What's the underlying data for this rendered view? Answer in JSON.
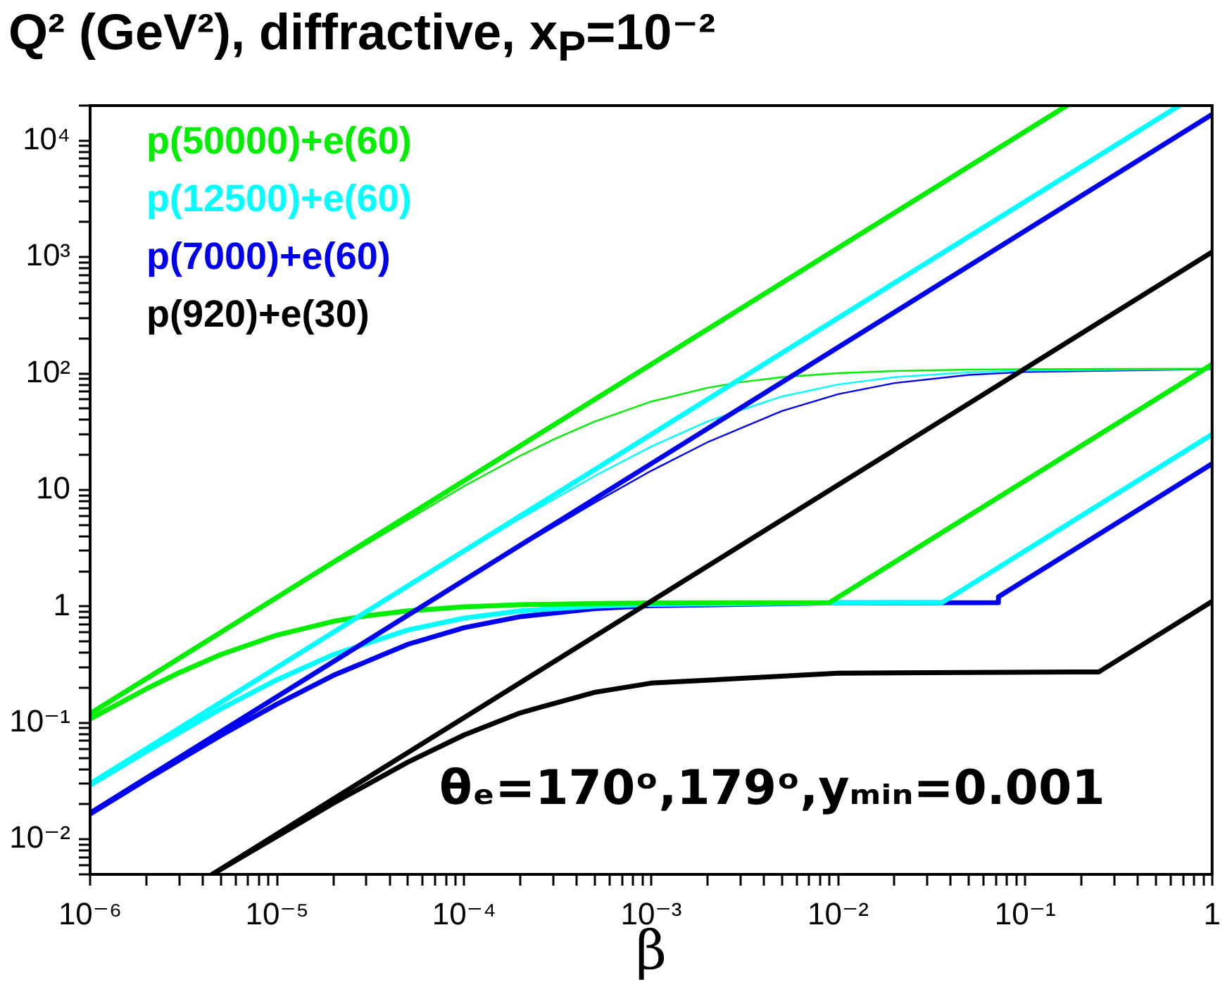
{
  "chart_data": {
    "type": "line",
    "title": "Q² (GeV²), diffractive, x$_{P}$=10⁻²",
    "xlabel": "β",
    "annotations": [
      "θₑ=170ᵒ,179ᵒ,yₘᵢₙ=0.001"
    ],
    "log": "xy",
    "legend": "top left",
    "xlim": [
      1e-06,
      1
    ],
    "ylim": [
      0.005,
      20000
    ],
    "xticks": [
      {
        "value": 1e-06,
        "label": "10⁻⁶"
      },
      {
        "value": 2e-06,
        "label": null
      },
      {
        "value": 3e-06,
        "label": null
      },
      {
        "value": 4e-06,
        "label": null
      },
      {
        "value": 5e-06,
        "label": null
      },
      {
        "value": 6e-06,
        "label": null
      },
      {
        "value": 7e-06,
        "label": null
      },
      {
        "value": 8e-06,
        "label": null
      },
      {
        "value": 9e-06,
        "label": null
      },
      {
        "value": 1e-05,
        "label": "10⁻⁵"
      },
      {
        "value": 2e-05,
        "label": null
      },
      {
        "value": 3e-05,
        "label": null
      },
      {
        "value": 4e-05,
        "label": null
      },
      {
        "value": 5e-05,
        "label": null
      },
      {
        "value": 6e-05,
        "label": null
      },
      {
        "value": 7e-05,
        "label": null
      },
      {
        "value": 8e-05,
        "label": null
      },
      {
        "value": 9e-05,
        "label": null
      },
      {
        "value": 0.0001,
        "label": "10⁻⁴"
      },
      {
        "value": 0.0002,
        "label": null
      },
      {
        "value": 0.0003,
        "label": null
      },
      {
        "value": 0.0004,
        "label": null
      },
      {
        "value": 0.0005,
        "label": null
      },
      {
        "value": 0.0006,
        "label": null
      },
      {
        "value": 0.0007,
        "label": null
      },
      {
        "value": 0.0008,
        "label": null
      },
      {
        "value": 0.0009,
        "label": null
      },
      {
        "value": 0.001,
        "label": "10⁻³"
      },
      {
        "value": 0.002,
        "label": null
      },
      {
        "value": 0.003,
        "label": null
      },
      {
        "value": 0.004,
        "label": null
      },
      {
        "value": 0.005,
        "label": null
      },
      {
        "value": 0.006,
        "label": null
      },
      {
        "value": 0.007,
        "label": null
      },
      {
        "value": 0.008,
        "label": null
      },
      {
        "value": 0.009,
        "label": null
      },
      {
        "value": 0.01,
        "label": "10⁻²"
      },
      {
        "value": 0.02,
        "label": null
      },
      {
        "value": 0.03,
        "label": null
      },
      {
        "value": 0.04,
        "label": null
      },
      {
        "value": 0.05,
        "label": null
      },
      {
        "value": 0.06,
        "label": null
      },
      {
        "value": 0.07,
        "label": null
      },
      {
        "value": 0.08,
        "label": null
      },
      {
        "value": 0.09,
        "label": null
      },
      {
        "value": 0.1,
        "label": "10⁻¹"
      },
      {
        "value": 0.2,
        "label": null
      },
      {
        "value": 0.3,
        "label": null
      },
      {
        "value": 0.4,
        "label": null
      },
      {
        "value": 0.5,
        "label": null
      },
      {
        "value": 0.6,
        "label": null
      },
      {
        "value": 0.7,
        "label": null
      },
      {
        "value": 0.8,
        "label": null
      },
      {
        "value": 0.9,
        "label": null
      },
      1
    ],
    "yticks": [
      {
        "value": 0.005,
        "label": null
      },
      {
        "value": 0.006,
        "label": null
      },
      {
        "value": 0.007,
        "label": null
      },
      {
        "value": 0.008,
        "label": null
      },
      {
        "value": 0.009,
        "label": null
      },
      {
        "value": 0.01,
        "label": "10⁻²"
      },
      {
        "value": 0.02,
        "label": null
      },
      {
        "value": 0.03,
        "label": null
      },
      {
        "value": 0.04,
        "label": null
      },
      {
        "value": 0.05,
        "label": null
      },
      {
        "value": 0.06,
        "label": null
      },
      {
        "value": 0.07,
        "label": null
      },
      {
        "value": 0.08,
        "label": null
      },
      {
        "value": 0.09,
        "label": null
      },
      {
        "value": 0.1,
        "label": "10⁻¹"
      },
      {
        "value": 0.2,
        "label": null
      },
      {
        "value": 0.3,
        "label": null
      },
      {
        "value": 0.4,
        "label": null
      },
      {
        "value": 0.5,
        "label": null
      },
      {
        "value": 0.6,
        "label": null
      },
      {
        "value": 0.7,
        "label": null
      },
      {
        "value": 0.8,
        "label": null
      },
      {
        "value": 0.9,
        "label": null
      },
      1,
      {
        "value": 2,
        "label": null
      },
      {
        "value": 3,
        "label": null
      },
      {
        "value": 4,
        "label": null
      },
      {
        "value": 5,
        "label": null
      },
      {
        "value": 6,
        "label": null
      },
      {
        "value": 7,
        "label": null
      },
      {
        "value": 8,
        "label": null
      },
      {
        "value": 9,
        "label": null
      },
      10,
      {
        "value": 20,
        "label": null
      },
      {
        "value": 30,
        "label": null
      },
      {
        "value": 40,
        "label": null
      },
      {
        "value": 50,
        "label": null
      },
      {
        "value": 60,
        "label": null
      },
      {
        "value": 70,
        "label": null
      },
      {
        "value": 80,
        "label": null
      },
      {
        "value": 90,
        "label": null
      },
      {
        "value": 100,
        "label": "10²"
      },
      {
        "value": 200,
        "label": null
      },
      {
        "value": 300,
        "label": null
      },
      {
        "value": 400,
        "label": null
      },
      {
        "value": 500,
        "label": null
      },
      {
        "value": 600,
        "label": null
      },
      {
        "value": 700,
        "label": null
      },
      {
        "value": 800,
        "label": null
      },
      {
        "value": 900,
        "label": null
      },
      {
        "value": 1000,
        "label": "10³"
      },
      {
        "value": 2000,
        "label": null
      },
      {
        "value": 3000,
        "label": null
      },
      {
        "value": 4000,
        "label": null
      },
      {
        "value": 5000,
        "label": null
      },
      {
        "value": 6000,
        "label": null
      },
      {
        "value": 7000,
        "label": null
      },
      {
        "value": 8000,
        "label": null
      },
      {
        "value": 9000,
        "label": null
      },
      {
        "value": 10000,
        "label": "10⁴"
      },
      {
        "value": 20000,
        "label": null
      }
    ],
    "series": [
      {
        "name": "p(50000)+e(60)",
        "color": "#00ee00",
        "x": [
          1e-06,
          0.167
        ],
        "values": [
          0.12,
          20000
        ]
      },
      {
        "name": "p(12500)+e(60)",
        "color": "#00ffff",
        "x": [
          1e-06,
          0.667
        ],
        "values": [
          0.03,
          20000
        ]
      },
      {
        "name": "p(7000)+e(60)",
        "color": "#0000ee",
        "x": [
          1e-06,
          1
        ],
        "values": [
          0.0168,
          16800
        ]
      },
      {
        "name": "p(920)+e(30)",
        "color": "#000000",
        "x": [
          4.5e-06,
          1
        ],
        "values": [
          0.005,
          1104
        ]
      },
      {
        "color": "#00ee00",
        "x": [
          1e-06,
          2e-06,
          3e-06,
          5e-06,
          1e-05,
          2e-05,
          3e-05,
          5e-05,
          0.0001,
          0.0002,
          0.0005,
          0.001,
          0.009,
          1
        ],
        "values": [
          0.108,
          0.196,
          0.27,
          0.386,
          0.568,
          0.745,
          0.831,
          0.915,
          0.991,
          1.033,
          1.061,
          1.07,
          1.08,
          120
        ]
      },
      {
        "color": "#00ffff",
        "x": [
          1e-06,
          2e-06,
          5e-06,
          1e-05,
          2e-05,
          5e-05,
          0.0001,
          0.0002,
          0.0005,
          0.001,
          0.01,
          0.036,
          1
        ],
        "values": [
          0.0292,
          0.0568,
          0.132,
          0.235,
          0.386,
          0.628,
          0.794,
          0.915,
          1.007,
          1.042,
          1.076,
          1.08,
          30
        ]
      },
      {
        "color": "#0000ee",
        "x": [
          1e-06,
          2e-06,
          5e-06,
          1e-05,
          2e-05,
          5e-05,
          0.0001,
          0.0002,
          0.0005,
          0.001,
          0.01,
          0.072,
          0.072,
          1
        ],
        "values": [
          0.0165,
          0.0326,
          0.078,
          0.145,
          0.256,
          0.4725,
          0.657,
          0.817,
          0.957,
          1.015,
          1.073,
          1.08,
          1.21,
          16.8
        ]
      },
      {
        "color": "#000000",
        "x": [
          4.5e-06,
          1e-05,
          2e-05,
          5e-05,
          0.0001,
          0.0002,
          0.0005,
          0.001,
          0.01,
          0.248,
          1
        ],
        "values": [
          0.005,
          0.0106,
          0.0204,
          0.046,
          0.0787,
          0.122,
          0.183,
          0.2195,
          0.267,
          0.274,
          1.104
        ]
      },
      {
        "color": "#00ee00",
        "x": [
          1e-06,
          1e-05,
          0.0001,
          0.0002,
          0.0003,
          0.0005,
          0.001,
          0.002,
          0.003,
          0.005,
          0.01,
          0.02,
          0.05,
          0.1,
          1
        ],
        "values": [
          0.12,
          1.19,
          10.8,
          19.7,
          27.1,
          38.8,
          57.4,
          75.4,
          84.3,
          93,
          100.8,
          105.2,
          108,
          109,
          110
        ]
      },
      {
        "color": "#00ffff",
        "x": [
          1e-06,
          1e-05,
          0.0001,
          0.0002,
          0.0005,
          0.001,
          0.002,
          0.005,
          0.01,
          0.02,
          0.05,
          0.1,
          1
        ],
        "values": [
          0.03,
          0.3,
          2.92,
          5.69,
          13.2,
          23.6,
          38.8,
          63.5,
          80.5,
          93,
          102.5,
          106,
          109.6
        ]
      },
      {
        "color": "#0000ee",
        "x": [
          1e-06,
          1e-05,
          0.0001,
          0.0002,
          0.0005,
          0.001,
          0.002,
          0.005,
          0.01,
          0.02,
          0.05,
          0.1,
          1
        ],
        "values": [
          0.0168,
          0.168,
          1.65,
          3.26,
          7.8,
          14.6,
          25.7,
          47.6,
          66.5,
          82.9,
          97.3,
          103.2,
          109.3
        ]
      }
    ]
  }
}
